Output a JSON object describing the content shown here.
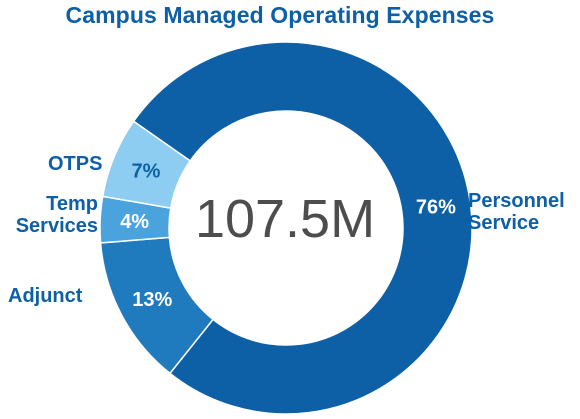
{
  "chart_data": {
    "type": "pie",
    "title": "Campus Managed Operating Expenses",
    "center_label": "107.5M",
    "donut": true,
    "slices": [
      {
        "name": "Personnel Service",
        "name_lines": [
          "Personnel",
          "Service"
        ],
        "value": 76,
        "label": "76%",
        "color": "#0d5fa6",
        "label_color": "#ffffff"
      },
      {
        "name": "Adjunct",
        "name_lines": [
          "Adjunct"
        ],
        "value": 13,
        "label": "13%",
        "color": "#1f7bbd",
        "label_color": "#ffffff"
      },
      {
        "name": "Temp Services",
        "name_lines": [
          "Temp",
          "Services"
        ],
        "value": 4,
        "label": "4%",
        "color": "#4aa3dc",
        "label_color": "#ffffff"
      },
      {
        "name": "OTPS",
        "name_lines": [
          "OTPS"
        ],
        "value": 7,
        "label": "7%",
        "color": "#8ecdf2",
        "label_color": "#0d5fa6"
      }
    ]
  }
}
